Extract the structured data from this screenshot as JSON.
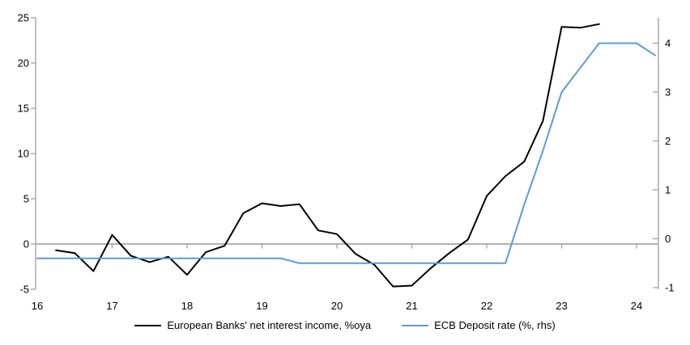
{
  "chart_data": {
    "type": "line",
    "title": "",
    "x_axis": {
      "tick_labels": [
        "16",
        "17",
        "18",
        "19",
        "20",
        "21",
        "22",
        "23",
        "24"
      ],
      "tick_values": [
        16,
        17,
        18,
        19,
        20,
        21,
        22,
        23,
        24
      ],
      "range": [
        16,
        24.3
      ]
    },
    "left_axis": {
      "ticks": [
        -5,
        0,
        5,
        10,
        15,
        20,
        25
      ],
      "range": [
        -5,
        25
      ],
      "zero_line": true
    },
    "right_axis": {
      "ticks": [
        -1,
        0,
        1,
        2,
        3,
        4
      ],
      "range": [
        -1,
        4.55
      ]
    },
    "grid": "off",
    "legend_position": "bottom",
    "series": [
      {
        "name": "European Banks' net interest income, %oya",
        "axis": "left",
        "color": "#000000",
        "x": [
          16.25,
          16.5,
          16.75,
          17.0,
          17.25,
          17.5,
          17.75,
          18.0,
          18.25,
          18.5,
          18.75,
          19.0,
          19.25,
          19.5,
          19.75,
          20.0,
          20.25,
          20.5,
          20.75,
          21.0,
          21.25,
          21.5,
          21.75,
          22.0,
          22.25,
          22.5,
          22.75,
          23.0,
          23.25,
          23.5
        ],
        "values": [
          -0.7,
          -1.0,
          -3.0,
          1.0,
          -1.3,
          -2.0,
          -1.4,
          -3.4,
          -0.9,
          -0.2,
          3.4,
          4.5,
          4.2,
          4.4,
          1.5,
          1.1,
          -1.1,
          -2.3,
          -4.7,
          -4.6,
          -2.7,
          -1.0,
          0.5,
          5.3,
          7.5,
          9.1,
          13.6,
          24.0,
          23.9,
          24.3
        ]
      },
      {
        "name": "ECB Deposit rate (%, rhs)",
        "axis": "right",
        "color": "#5B9BD5",
        "x": [
          16.0,
          16.25,
          16.5,
          16.75,
          17.0,
          17.25,
          17.5,
          17.75,
          18.0,
          18.25,
          18.5,
          18.75,
          19.0,
          19.25,
          19.5,
          19.75,
          20.0,
          20.25,
          20.5,
          20.75,
          21.0,
          21.25,
          21.5,
          21.75,
          22.0,
          22.25,
          22.5,
          22.75,
          23.0,
          23.25,
          23.5,
          23.75,
          24.0,
          24.25
        ],
        "values": [
          -0.4,
          -0.4,
          -0.4,
          -0.4,
          -0.4,
          -0.4,
          -0.4,
          -0.4,
          -0.4,
          -0.4,
          -0.4,
          -0.4,
          -0.4,
          -0.4,
          -0.5,
          -0.5,
          -0.5,
          -0.5,
          -0.5,
          -0.5,
          -0.5,
          -0.5,
          -0.5,
          -0.5,
          -0.5,
          -0.5,
          0.7,
          1.8,
          3.0,
          3.5,
          4.0,
          4.0,
          4.0,
          3.75
        ]
      }
    ]
  },
  "legend": {
    "items": [
      {
        "label": "European Banks' net interest income, %oya",
        "color": "#000000"
      },
      {
        "label": "ECB Deposit rate (%, rhs)",
        "color": "#5B9BD5"
      }
    ]
  },
  "colors": {
    "axis": "#A6A6A6",
    "text": "#000000",
    "background": "#FFFFFF",
    "series_black": "#000000",
    "series_blue": "#5B9BD5"
  }
}
